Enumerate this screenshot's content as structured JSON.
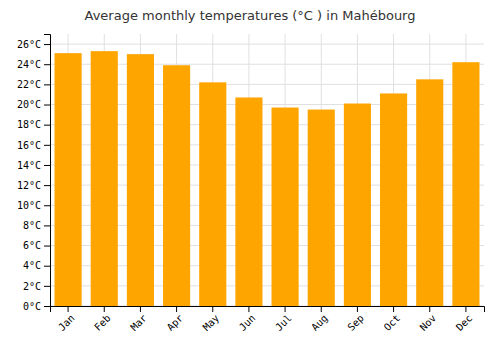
{
  "chart_data": {
    "type": "bar",
    "title": "Average monthly temperatures (°C ) in Mahébourg",
    "categories": [
      "Jan",
      "Feb",
      "Mar",
      "Apr",
      "May",
      "Jun",
      "Jul",
      "Aug",
      "Sep",
      "Oct",
      "Nov",
      "Dec"
    ],
    "values": [
      25.1,
      25.3,
      25.0,
      23.9,
      22.2,
      20.7,
      19.7,
      19.5,
      20.1,
      21.1,
      22.5,
      24.2
    ],
    "color": "#FFA500",
    "ylim": [
      0,
      27
    ],
    "yticks": [
      {
        "value": 0,
        "label": "0°C"
      },
      {
        "value": 2,
        "label": "2°C"
      },
      {
        "value": 4,
        "label": "4°C"
      },
      {
        "value": 6,
        "label": "6°C"
      },
      {
        "value": 8,
        "label": "8°C"
      },
      {
        "value": 10,
        "label": "10°C"
      },
      {
        "value": 12,
        "label": "12°C"
      },
      {
        "value": 14,
        "label": "14°C"
      },
      {
        "value": 16,
        "label": "16°C"
      },
      {
        "value": 18,
        "label": "18°C"
      },
      {
        "value": 20,
        "label": "20°C"
      },
      {
        "value": 22,
        "label": "22°C"
      },
      {
        "value": 24,
        "label": "24°C"
      },
      {
        "value": 26,
        "label": "26°C"
      }
    ],
    "grid": true
  }
}
